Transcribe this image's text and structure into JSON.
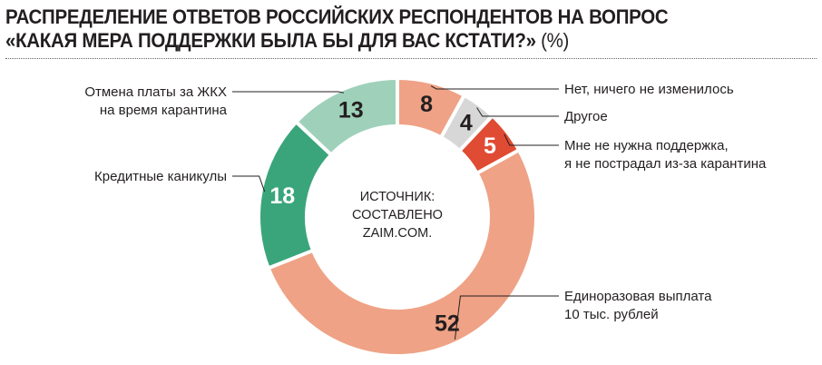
{
  "title": {
    "line1": "РАСПРЕДЕЛЕНИЕ ОТВЕТОВ РОССИЙСКИХ РЕСПОНДЕНТОВ НА ВОПРОС",
    "line2": "«КАКАЯ МЕРА ПОДДЕРЖКИ БЫЛА БЫ ДЛЯ ВАС КСТАТИ?»",
    "unit": "(%)"
  },
  "source": {
    "line1": "ИСТОЧНИК:",
    "line2": "СОСТАВЛЕНО",
    "line3": "ZAIM.COM."
  },
  "chart_data": {
    "type": "pie",
    "variant": "donut",
    "unit": "%",
    "slices": [
      {
        "label_lines": [
          "Нет, ничего не изменилось"
        ],
        "value": 8,
        "color": "#efa285",
        "side": "right"
      },
      {
        "label_lines": [
          "Другое"
        ],
        "value": 4,
        "color": "#d7d7d7",
        "side": "right"
      },
      {
        "label_lines": [
          "Мне не нужна поддержка,",
          "я не пострадал из-за карантина"
        ],
        "value": 5,
        "color": "#e04b33",
        "side": "right"
      },
      {
        "label_lines": [
          "Единоразовая выплата",
          "10 тыс. рублей"
        ],
        "value": 52,
        "color": "#efa285",
        "side": "right"
      },
      {
        "label_lines": [
          "Кредитные каникулы"
        ],
        "value": 18,
        "color": "#3aa57b",
        "side": "left"
      },
      {
        "label_lines": [
          "Отмена платы за ЖКХ",
          "на время карантина"
        ],
        "value": 13,
        "color": "#9fd1ba",
        "side": "left"
      }
    ]
  }
}
